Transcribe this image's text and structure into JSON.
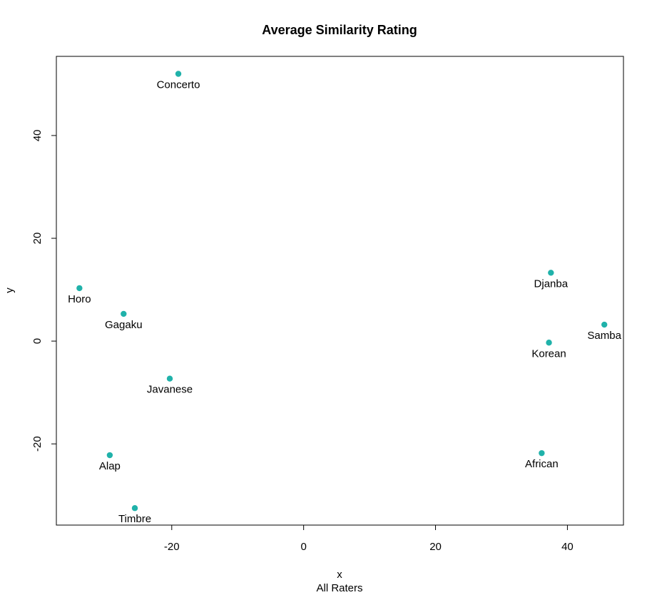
{
  "chart_data": {
    "type": "scatter",
    "title": "Average Similarity Rating",
    "xlabel": "x",
    "xlabel_sub": "All Raters",
    "ylabel": "y",
    "xlim": [
      -37.5,
      48.5
    ],
    "ylim": [
      -35.8,
      55.4
    ],
    "xticks": [
      -20,
      0,
      20,
      40
    ],
    "yticks": [
      -20,
      0,
      20,
      40
    ],
    "point_color": "#20b2aa",
    "grid": false,
    "points": [
      {
        "label": "Concerto",
        "x": -19.0,
        "y": 52.0
      },
      {
        "label": "Horo",
        "x": -34.0,
        "y": 10.3
      },
      {
        "label": "Gagaku",
        "x": -27.3,
        "y": 5.3
      },
      {
        "label": "Javanese",
        "x": -20.3,
        "y": -7.3
      },
      {
        "label": "Alap",
        "x": -29.4,
        "y": -22.2
      },
      {
        "label": "Timbre",
        "x": -25.6,
        "y": -32.5
      },
      {
        "label": "Djanba",
        "x": 37.5,
        "y": 13.3
      },
      {
        "label": "Samba",
        "x": 45.6,
        "y": 3.2
      },
      {
        "label": "Korean",
        "x": 37.2,
        "y": -0.3
      },
      {
        "label": "African",
        "x": 36.1,
        "y": -21.8
      }
    ]
  }
}
